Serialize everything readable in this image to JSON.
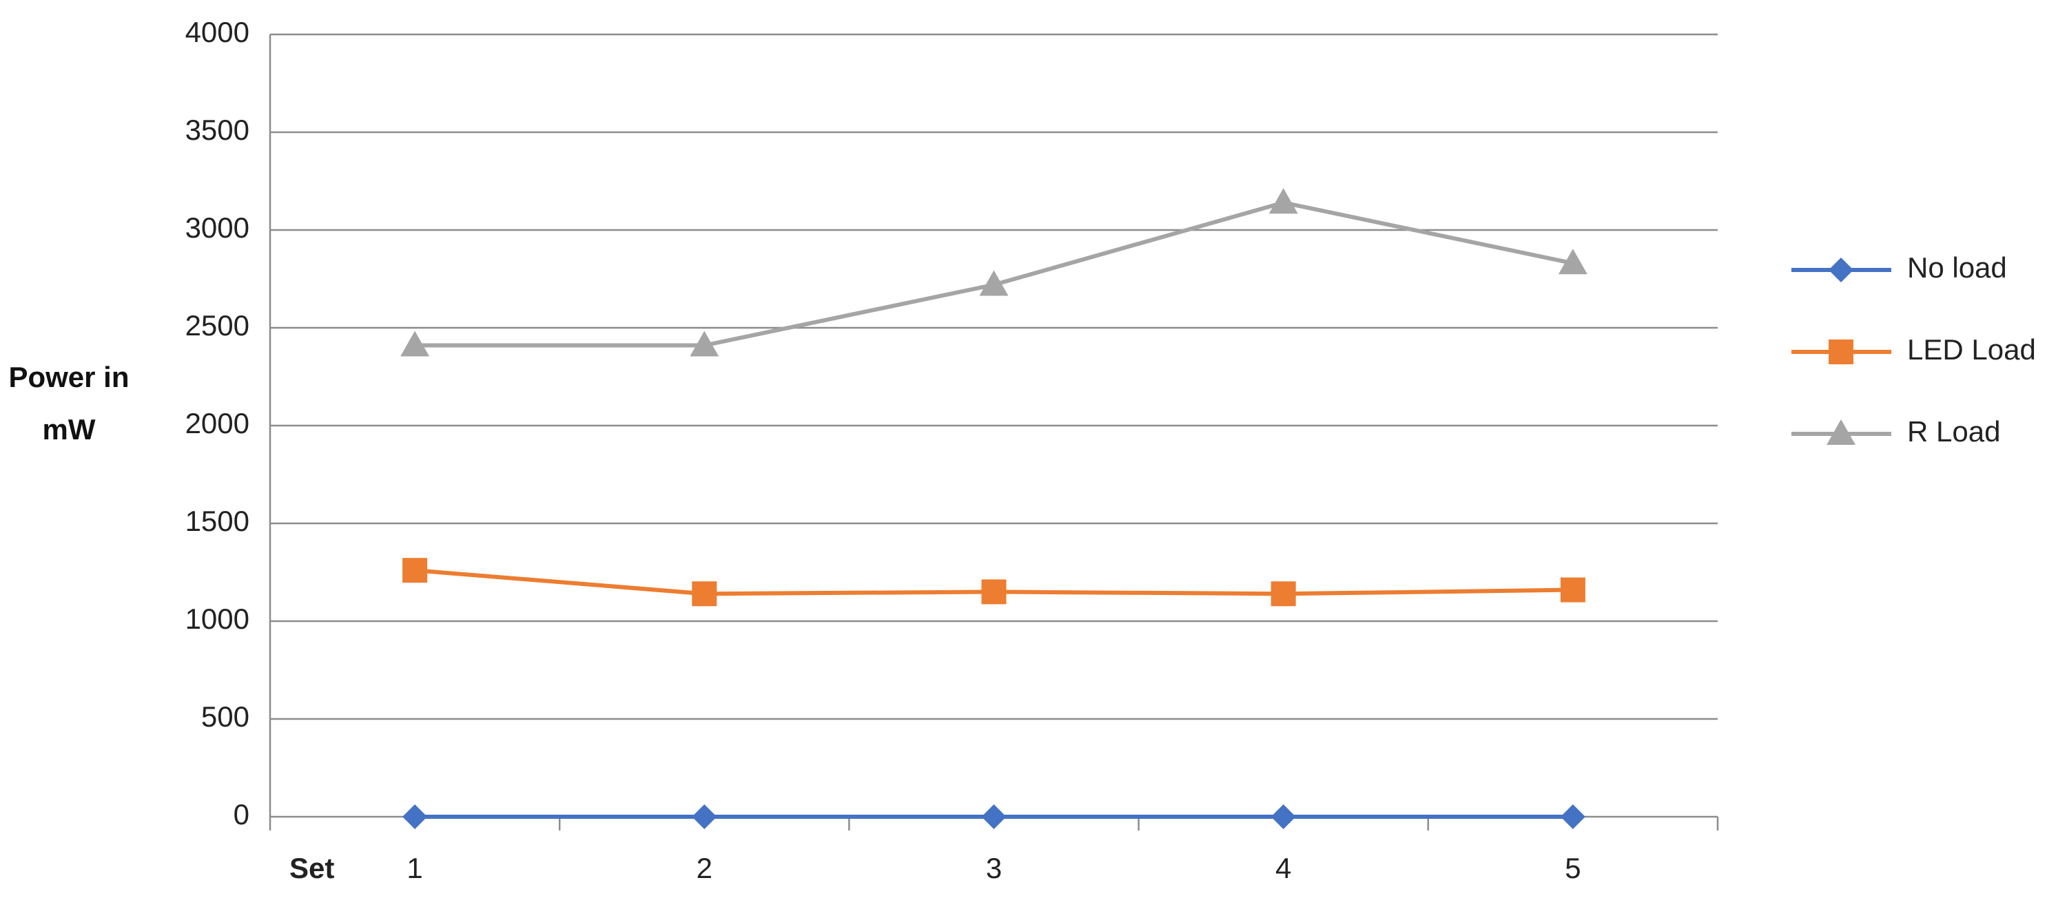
{
  "chart_data": {
    "type": "line",
    "y_label": "Power in mW",
    "x_label": "Set",
    "categories": [
      "1",
      "2",
      "3",
      "4",
      "5"
    ],
    "series": [
      {
        "name": "No load",
        "color": "#4472c4",
        "marker": "diamond",
        "values": [
          0,
          0,
          0,
          0,
          0
        ]
      },
      {
        "name": "LED Load",
        "color": "#ed7d31",
        "marker": "square",
        "values": [
          1260,
          1140,
          1150,
          1140,
          1160
        ]
      },
      {
        "name": "R Load",
        "color": "#a5a5a5",
        "marker": "triangle",
        "values": [
          2410,
          2410,
          2720,
          3140,
          2830
        ]
      }
    ],
    "ylim": [
      0,
      4000
    ],
    "yticks": [
      0,
      500,
      1000,
      1500,
      2000,
      2500,
      3000,
      3500,
      4000
    ],
    "grid": true,
    "legend": "right"
  }
}
